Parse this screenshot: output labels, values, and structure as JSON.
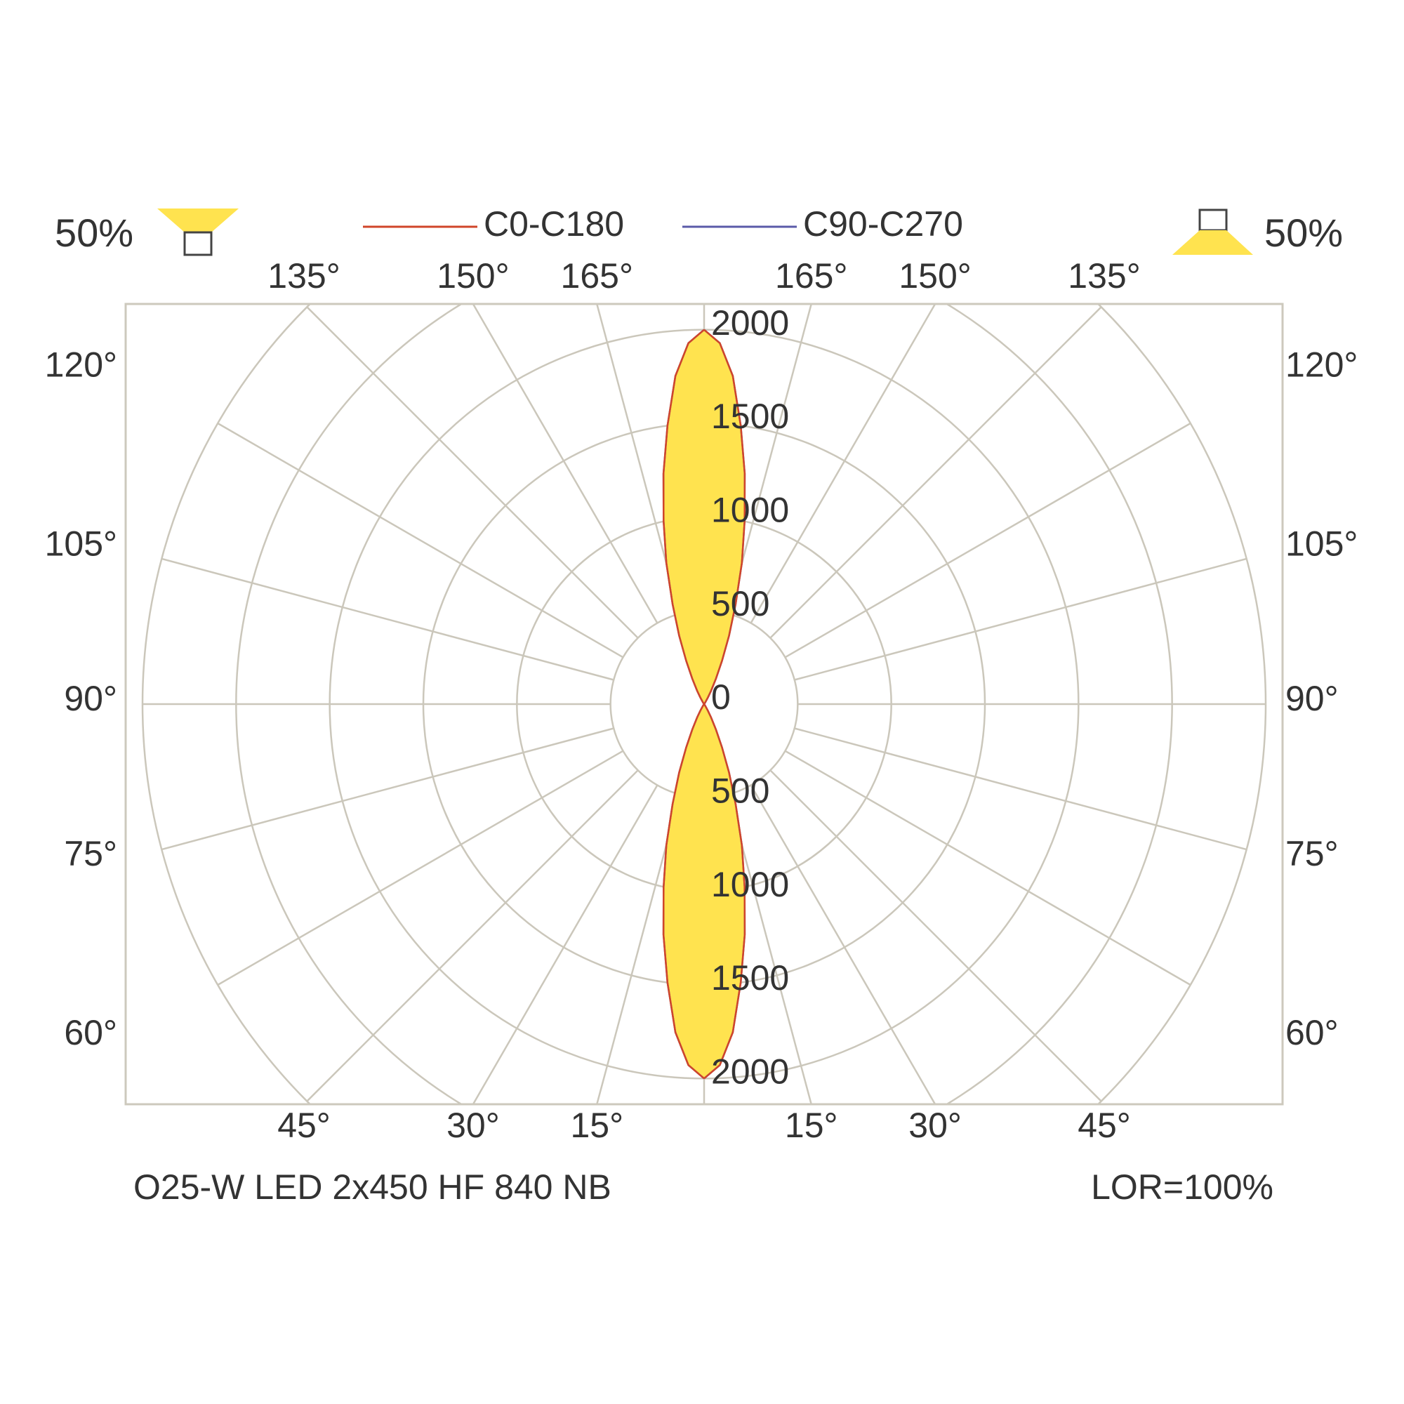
{
  "chart_data": {
    "type": "polar",
    "downward_label": "50%",
    "upward_label": "50%",
    "footer_left": "O25-W LED 2x450 HF 840 NB",
    "footer_right": "LOR=100%",
    "angles": [
      0,
      2.5,
      5,
      7.5,
      10,
      12.5,
      15,
      17.5,
      20,
      22.5,
      25,
      27.5,
      30,
      35,
      40,
      45,
      60,
      75,
      90,
      105,
      120,
      135,
      140,
      145,
      150,
      152.5,
      155,
      157.5,
      160,
      162.5,
      165,
      167.5,
      170,
      172.5,
      175,
      177.5,
      180
    ],
    "series": [
      {
        "name": "C90-C270",
        "color": "#5a5aa8",
        "values": [
          2000,
          1930,
          1760,
          1500,
          1250,
          1000,
          780,
          560,
          390,
          250,
          150,
          80,
          40,
          10,
          0,
          0,
          0,
          0,
          0,
          0,
          0,
          0,
          0,
          10,
          40,
          80,
          150,
          250,
          390,
          560,
          780,
          1000,
          1250,
          1500,
          1760,
          1930,
          2000
        ]
      },
      {
        "name": "C0-C180",
        "color": "#d0452a",
        "values": [
          2000,
          1930,
          1760,
          1500,
          1250,
          1000,
          780,
          560,
          390,
          250,
          150,
          80,
          40,
          10,
          0,
          0,
          0,
          0,
          0,
          0,
          0,
          0,
          0,
          10,
          40,
          80,
          150,
          250,
          390,
          560,
          780,
          1000,
          1250,
          1500,
          1760,
          1930,
          2000
        ]
      }
    ],
    "fill_color": "#ffe34f",
    "rlim": [
      0,
      3000
    ],
    "rticks": [
      0,
      500,
      1000,
      1500,
      2000
    ],
    "angle_ticks": [
      {
        "value": 15,
        "label": "15°"
      },
      {
        "value": 30,
        "label": "30°"
      },
      {
        "value": 45,
        "label": "45°"
      },
      {
        "value": 60,
        "label": "60°"
      },
      {
        "value": 75,
        "label": "75°"
      },
      {
        "value": 90,
        "label": "90°"
      },
      {
        "value": 105,
        "label": "105°"
      },
      {
        "value": 120,
        "label": "120°"
      },
      {
        "value": 135,
        "label": "135°"
      },
      {
        "value": 150,
        "label": "150°"
      },
      {
        "value": 165,
        "label": "165°"
      }
    ]
  }
}
